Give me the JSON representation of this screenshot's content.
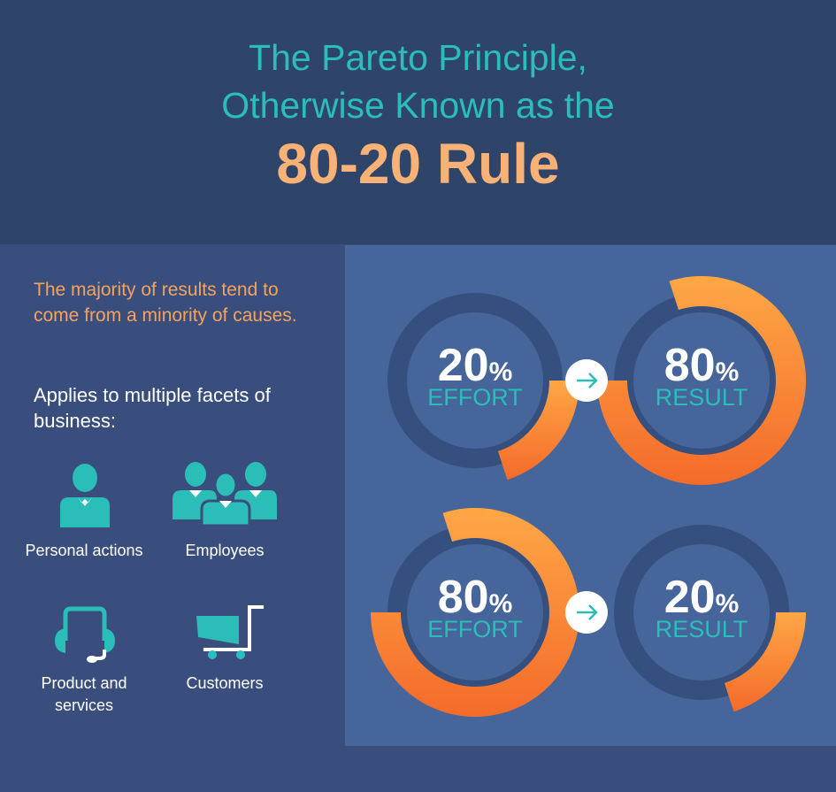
{
  "header": {
    "line1": "The Pareto Principle,",
    "line2": "Otherwise Known as the",
    "line3": "80-20 Rule"
  },
  "intro": {
    "text": "The majority of results tend to come from a minority of causes.",
    "applies": "Applies to multiple facets of business:"
  },
  "facets": [
    {
      "label": "Personal actions",
      "icon": "person-icon"
    },
    {
      "label": "Employees",
      "icon": "group-icon"
    },
    {
      "label": "Product and services",
      "icon": "headset-icon"
    },
    {
      "label": "Customers",
      "icon": "shopping-cart-icon"
    }
  ],
  "colors": {
    "accent_teal": "#2bbdb8",
    "accent_orange": "#f7a043",
    "ring_dark": "#35507f"
  },
  "chart_data": {
    "type": "donut",
    "donuts": [
      {
        "value": "20",
        "unit": "%",
        "label": "EFFORT",
        "percent": 20
      },
      {
        "value": "80",
        "unit": "%",
        "label": "RESULT",
        "percent": 80
      },
      {
        "value": "80",
        "unit": "%",
        "label": "EFFORT",
        "percent": 80
      },
      {
        "value": "20",
        "unit": "%",
        "label": "RESULT",
        "percent": 20
      }
    ],
    "arrow_icon": "arrow-right-icon"
  }
}
